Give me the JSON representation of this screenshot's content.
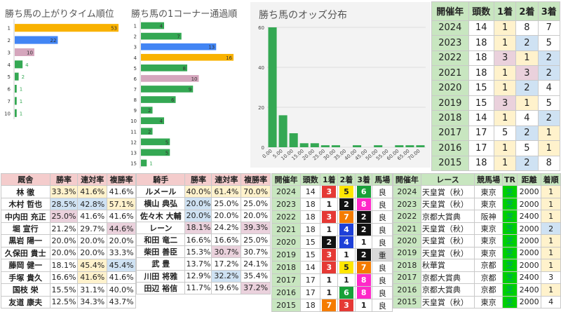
{
  "chart_agari": {
    "title": "勝ち馬の上がりタイム順位",
    "chart_data": {
      "type": "bar",
      "orientation": "horizontal",
      "categories": [
        "1",
        "2",
        "3",
        "4",
        "5",
        "6",
        "7",
        "10"
      ],
      "values": [
        53,
        22,
        10,
        4,
        2,
        1,
        1,
        1
      ]
    }
  },
  "chart_corner": {
    "title": "勝ち馬の1コーナー通過順",
    "chart_data": {
      "type": "bar",
      "orientation": "horizontal",
      "categories": [
        "1",
        "2",
        "3",
        "4",
        "5",
        "6",
        "7",
        "8",
        "9",
        "10",
        "11",
        "12",
        "13",
        "15"
      ],
      "values": [
        4,
        7,
        13,
        16,
        8,
        10,
        9,
        6,
        2,
        4,
        2,
        5,
        5,
        1
      ]
    }
  },
  "chart_odds": {
    "title": "勝ち馬のオッズ分布",
    "chart_data": {
      "type": "bar",
      "categories": [
        "0.00",
        "5.00",
        "10.00",
        "15.00",
        "20.00",
        "25.00",
        "30.00",
        "35.00",
        "40.00",
        "45.00",
        "50.00",
        "55.00",
        "60.00",
        "65.00",
        "70.00"
      ],
      "values": [
        60,
        16,
        7,
        2,
        2,
        1,
        1,
        0,
        1,
        0,
        1,
        0,
        1,
        1,
        1
      ],
      "ylim": [
        0,
        60
      ],
      "yticks": [
        "0",
        "20",
        "40",
        "60"
      ]
    }
  },
  "colors": {
    "yellow": "#f9b200",
    "blue": "#4285f4",
    "pink": "#d5a6bd",
    "green": "#34a853",
    "header": "#c8e6c0"
  },
  "years_table": {
    "headers": [
      "開催年",
      "頭数",
      "1着",
      "2着",
      "3着"
    ],
    "rows": [
      {
        "year": "2024",
        "count": "14",
        "p1": "1",
        "p2": "8",
        "p3": "7",
        "c": [
          "y",
          "w",
          "w"
        ]
      },
      {
        "year": "2023",
        "count": "18",
        "p1": "1",
        "p2": "2",
        "p3": "5",
        "c": [
          "y",
          "b",
          "w"
        ]
      },
      {
        "year": "2022",
        "count": "18",
        "p1": "3",
        "p2": "1",
        "p3": "2",
        "c": [
          "p",
          "y",
          "b"
        ]
      },
      {
        "year": "2021",
        "count": "18",
        "p1": "1",
        "p2": "3",
        "p3": "2",
        "c": [
          "y",
          "p",
          "b"
        ]
      },
      {
        "year": "2020",
        "count": "15",
        "p1": "1",
        "p2": "2",
        "p3": "4",
        "c": [
          "y",
          "b",
          "w"
        ]
      },
      {
        "year": "2019",
        "count": "15",
        "p1": "3",
        "p2": "1",
        "p3": "5",
        "c": [
          "p",
          "y",
          "w"
        ]
      },
      {
        "year": "2018",
        "count": "14",
        "p1": "1",
        "p2": "4",
        "p3": "2",
        "c": [
          "y",
          "w",
          "b"
        ]
      },
      {
        "year": "2017",
        "count": "17",
        "p1": "5",
        "p2": "2",
        "p3": "1",
        "c": [
          "w",
          "b",
          "y"
        ]
      },
      {
        "year": "2016",
        "count": "17",
        "p1": "1",
        "p2": "5",
        "p3": "1",
        "c": [
          "y",
          "w",
          "y"
        ]
      },
      {
        "year": "2015",
        "count": "18",
        "p1": "1",
        "p2": "2",
        "p3": "8",
        "c": [
          "y",
          "b",
          "w"
        ]
      }
    ]
  },
  "trainer_table": {
    "headers": [
      "厩舎",
      "勝率",
      "連対率",
      "複勝率"
    ],
    "rows": [
      {
        "name": "林 徹",
        "win": "33.3%",
        "ren": "41.6%",
        "fuku": "41.6%",
        "c": [
          "y",
          "y",
          "w"
        ]
      },
      {
        "name": "木村 哲也",
        "win": "28.5%",
        "ren": "42.8%",
        "fuku": "57.1%",
        "c": [
          "b",
          "b",
          "y"
        ]
      },
      {
        "name": "中内田 充正",
        "win": "25.0%",
        "ren": "41.6%",
        "fuku": "41.6%",
        "c": [
          "p",
          "w",
          "w"
        ]
      },
      {
        "name": "堀 宣行",
        "win": "21.2%",
        "ren": "29.7%",
        "fuku": "44.6%",
        "c": [
          "w",
          "w",
          "p"
        ]
      },
      {
        "name": "黒岩 陽一",
        "win": "20.0%",
        "ren": "20.0%",
        "fuku": "20.0%",
        "c": [
          "w",
          "w",
          "w"
        ]
      },
      {
        "name": "久保田 貴士",
        "win": "20.0%",
        "ren": "20.0%",
        "fuku": "33.3%",
        "c": [
          "w",
          "w",
          "w"
        ]
      },
      {
        "name": "藤岡 健一",
        "win": "18.1%",
        "ren": "45.4%",
        "fuku": "45.4%",
        "c": [
          "w",
          "y",
          "b"
        ]
      },
      {
        "name": "手塚 貴久",
        "win": "16.6%",
        "ren": "41.6%",
        "fuku": "41.6%",
        "c": [
          "w",
          "y",
          "w"
        ]
      },
      {
        "name": "国枝 栄",
        "win": "15.5%",
        "ren": "31.1%",
        "fuku": "40.0%",
        "c": [
          "w",
          "w",
          "w"
        ]
      },
      {
        "name": "友道 康夫",
        "win": "12.5%",
        "ren": "34.3%",
        "fuku": "43.7%",
        "c": [
          "w",
          "w",
          "w"
        ]
      }
    ]
  },
  "jockey_table": {
    "headers": [
      "騎手",
      "勝率",
      "連対率",
      "複勝率"
    ],
    "rows": [
      {
        "name": "ルメール",
        "win": "40.0%",
        "ren": "61.4%",
        "fuku": "70.0%",
        "c": [
          "y",
          "y",
          "y"
        ]
      },
      {
        "name": "横山 典弘",
        "win": "20.0%",
        "ren": "25.0%",
        "fuku": "25.0%",
        "c": [
          "b",
          "w",
          "w"
        ]
      },
      {
        "name": "佐々木 大輔",
        "win": "20.0%",
        "ren": "20.0%",
        "fuku": "20.0%",
        "c": [
          "b",
          "w",
          "w"
        ]
      },
      {
        "name": "レーン",
        "win": "18.1%",
        "ren": "24.2%",
        "fuku": "39.3%",
        "c": [
          "p",
          "w",
          "p"
        ]
      },
      {
        "name": "和田 竜二",
        "win": "16.6%",
        "ren": "16.6%",
        "fuku": "25.0%",
        "c": [
          "w",
          "w",
          "w"
        ]
      },
      {
        "name": "柴田 善臣",
        "win": "15.3%",
        "ren": "30.7%",
        "fuku": "30.7%",
        "c": [
          "w",
          "p",
          "w"
        ]
      },
      {
        "name": "武 豊",
        "win": "13.7%",
        "ren": "17.2%",
        "fuku": "24.1%",
        "c": [
          "w",
          "w",
          "w"
        ]
      },
      {
        "name": "川田 将雅",
        "win": "12.9%",
        "ren": "32.2%",
        "fuku": "35.4%",
        "c": [
          "w",
          "b",
          "w"
        ]
      },
      {
        "name": "田辺 裕信",
        "win": "11.7%",
        "ren": "19.6%",
        "fuku": "37.2%",
        "c": [
          "w",
          "w",
          "p"
        ]
      }
    ]
  },
  "results_table": {
    "headers": [
      "開催年",
      "頭数",
      "1着",
      "2着",
      "3着",
      "馬場"
    ],
    "rows": [
      {
        "year": "2024",
        "count": "14",
        "w1": "3",
        "w2": "5",
        "w3": "6",
        "baba": "良"
      },
      {
        "year": "2023",
        "count": "18",
        "w1": "1",
        "w2": "2",
        "w3": "8",
        "baba": "良"
      },
      {
        "year": "2022",
        "count": "18",
        "w1": "3",
        "w2": "7",
        "w3": "2",
        "baba": "良"
      },
      {
        "year": "2021",
        "count": "18",
        "w1": "1",
        "w2": "4",
        "w3": "2",
        "baba": "良"
      },
      {
        "year": "2020",
        "count": "15",
        "w1": "2",
        "w2": "4",
        "w3": "1",
        "baba": "良"
      },
      {
        "year": "2019",
        "count": "15",
        "w1": "3",
        "w2": "1",
        "w3": "2",
        "baba": "重"
      },
      {
        "year": "2018",
        "count": "14",
        "w1": "3",
        "w2": "5",
        "w3": "7",
        "baba": "良"
      },
      {
        "year": "2017",
        "count": "17",
        "w1": "1",
        "w2": "1",
        "w3": "8",
        "baba": "良"
      },
      {
        "year": "2016",
        "count": "17",
        "w1": "1",
        "w2": "6",
        "w3": "8",
        "baba": "良"
      },
      {
        "year": "2015",
        "count": "18",
        "w1": "7",
        "w2": "3",
        "w3": "1",
        "baba": "良"
      }
    ]
  },
  "race_table": {
    "headers": [
      "開催年",
      "レース",
      "競馬場",
      "TR",
      "距離",
      "着順"
    ],
    "rows": [
      {
        "year": "2024",
        "race": "天皇賞（秋）",
        "track": "東京",
        "tr": "芝",
        "dist": "2000",
        "rank": "1"
      },
      {
        "year": "2023",
        "race": "天皇賞（秋）",
        "track": "東京",
        "tr": "芝",
        "dist": "2000",
        "rank": "1"
      },
      {
        "year": "2022",
        "race": "京都大賞典",
        "track": "阪神",
        "tr": "芝",
        "dist": "2400",
        "rank": "1"
      },
      {
        "year": "2021",
        "race": "天皇賞（秋）",
        "track": "東京",
        "tr": "芝",
        "dist": "2000",
        "rank": "2"
      },
      {
        "year": "2020",
        "race": "天皇賞（秋）",
        "track": "東京",
        "tr": "芝",
        "dist": "2000",
        "rank": "1"
      },
      {
        "year": "2019",
        "race": "天皇賞（秋）",
        "track": "東京",
        "tr": "芝",
        "dist": "2000",
        "rank": "1"
      },
      {
        "year": "2018",
        "race": "秋華賞",
        "track": "京都",
        "tr": "芝",
        "dist": "2000",
        "rank": "1"
      },
      {
        "year": "2017",
        "race": "京都大賞典",
        "track": "京都",
        "tr": "芝",
        "dist": "2400",
        "rank": "3"
      },
      {
        "year": "2016",
        "race": "京都大賞典",
        "track": "京都",
        "tr": "芝",
        "dist": "2400",
        "rank": "1"
      },
      {
        "year": "2015",
        "race": "天皇賞（秋）",
        "track": "東京",
        "tr": "芝",
        "dist": "2000",
        "rank": "4"
      }
    ]
  },
  "frame_colors": {
    "1": [
      "#ffffff",
      "#222"
    ],
    "2": [
      "#111111",
      "#fff"
    ],
    "3": [
      "#e53935",
      "#fff"
    ],
    "4": [
      "#1e40d8",
      "#fff"
    ],
    "5": [
      "#ffe600",
      "#222"
    ],
    "6": [
      "#18a038",
      "#fff"
    ],
    "7": [
      "#f57c00",
      "#fff"
    ],
    "8": [
      "#ff28c8",
      "#fff"
    ]
  }
}
